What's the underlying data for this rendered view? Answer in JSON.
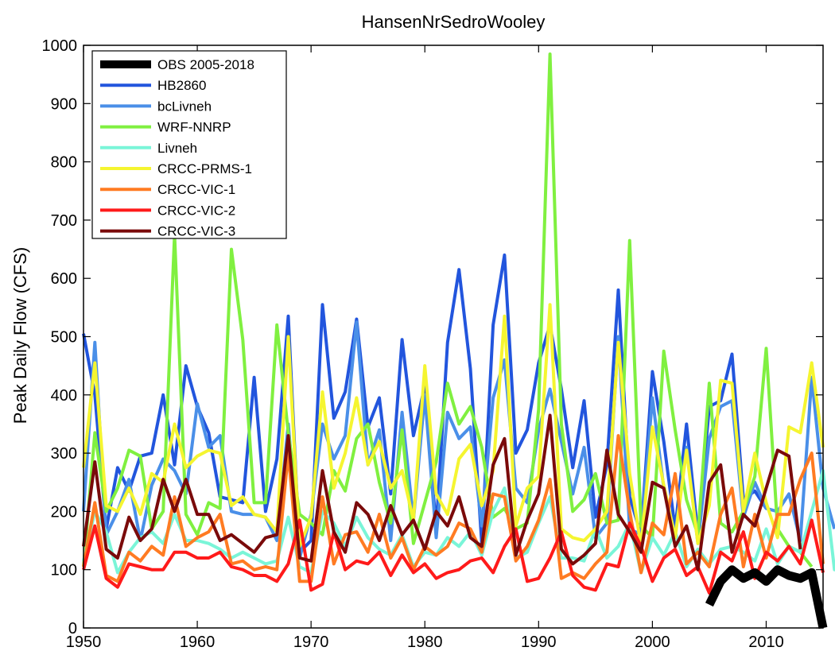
{
  "chart_data": {
    "type": "line",
    "title": "HansenNrSedroWooley",
    "xlabel": "",
    "ylabel": "Peak Daily Flow (CFS)",
    "xlim": [
      1950,
      2015
    ],
    "ylim": [
      0,
      1000
    ],
    "xticks": [
      1950,
      1960,
      1970,
      1980,
      1990,
      2000,
      2010
    ],
    "yticks": [
      0,
      100,
      200,
      300,
      400,
      500,
      600,
      700,
      800,
      900,
      1000
    ],
    "grid": false,
    "legend_position": "top-left",
    "series": [
      {
        "name": "HB2860",
        "color": "#2255dd",
        "width": 4,
        "start": 1950,
        "values": [
          505,
          400,
          170,
          275,
          235,
          295,
          300,
          400,
          280,
          450,
          380,
          335,
          225,
          220,
          215,
          430,
          200,
          290,
          535,
          130,
          150,
          555,
          360,
          405,
          530,
          345,
          395,
          230,
          495,
          330,
          415,
          170,
          490,
          615,
          445,
          145,
          520,
          640,
          300,
          340,
          455,
          520,
          410,
          275,
          390,
          190,
          280,
          580,
          225,
          160,
          440,
          320,
          170,
          350,
          160,
          380,
          390,
          470,
          220,
          235,
          205
        ]
      },
      {
        "name": "bcLivneh",
        "color": "#4a8fe8",
        "width": 4,
        "start": 1950,
        "values": [
          200,
          490,
          160,
          200,
          255,
          150,
          245,
          290,
          270,
          230,
          385,
          310,
          330,
          200,
          195,
          195,
          190,
          150,
          350,
          120,
          195,
          350,
          290,
          330,
          525,
          280,
          340,
          150,
          370,
          185,
          400,
          155,
          370,
          325,
          345,
          175,
          395,
          460,
          240,
          215,
          340,
          410,
          320,
          230,
          310,
          155,
          180,
          500,
          170,
          160,
          395,
          240,
          160,
          310,
          145,
          325,
          380,
          390,
          190,
          250,
          205,
          200,
          230,
          150,
          430,
          240,
          170
        ]
      },
      {
        "name": "WRF-NNRP",
        "color": "#80f040",
        "width": 4,
        "start": 1950,
        "values": [
          105,
          335,
          200,
          240,
          305,
          295,
          170,
          200,
          675,
          195,
          160,
          215,
          205,
          650,
          495,
          215,
          215,
          520,
          335,
          195,
          180,
          160,
          270,
          235,
          325,
          350,
          250,
          180,
          340,
          145,
          215,
          285,
          420,
          350,
          380,
          310,
          190,
          205,
          170,
          180,
          375,
          985,
          350,
          200,
          220,
          265,
          180,
          185,
          665,
          175,
          155,
          475,
          340,
          220,
          160,
          420,
          180,
          165,
          200,
          260,
          480,
          170,
          140,
          130,
          105
        ]
      },
      {
        "name": "Livneh",
        "color": "#7af5d8",
        "width": 4,
        "start": 1950,
        "values": [
          115,
          200,
          165,
          95,
          130,
          155,
          165,
          145,
          195,
          150,
          150,
          145,
          135,
          120,
          130,
          120,
          110,
          115,
          190,
          105,
          95,
          200,
          180,
          140,
          190,
          155,
          135,
          125,
          160,
          105,
          130,
          125,
          155,
          140,
          165,
          125,
          200,
          240,
          120,
          130,
          180,
          225,
          120,
          120,
          115,
          170,
          120,
          140,
          180,
          95,
          155,
          125,
          165,
          105,
          135,
          110,
          135,
          140,
          130,
          115,
          170,
          110,
          140,
          130,
          200,
          270,
          100,
          100,
          80
        ]
      },
      {
        "name": "CRCC-PRMS-1",
        "color": "#f5f530",
        "width": 4,
        "start": 1950,
        "values": [
          275,
          455,
          210,
          200,
          240,
          195,
          265,
          250,
          350,
          275,
          295,
          305,
          300,
          210,
          225,
          195,
          190,
          165,
          500,
          140,
          190,
          405,
          240,
          300,
          395,
          280,
          320,
          240,
          270,
          185,
          450,
          230,
          195,
          290,
          315,
          210,
          270,
          535,
          175,
          240,
          260,
          555,
          170,
          155,
          150,
          170,
          200,
          490,
          265,
          140,
          345,
          245,
          155,
          305,
          145,
          210,
          425,
          420,
          200,
          300,
          215,
          155,
          345,
          335,
          455,
          310
        ]
      },
      {
        "name": "CRCC-VIC-1",
        "color": "#ff7b22",
        "width": 4,
        "start": 1950,
        "values": [
          105,
          215,
          90,
          80,
          130,
          115,
          140,
          125,
          225,
          140,
          155,
          165,
          195,
          110,
          115,
          100,
          105,
          100,
          300,
          80,
          80,
          225,
          110,
          160,
          165,
          130,
          195,
          120,
          155,
          100,
          140,
          125,
          140,
          180,
          170,
          130,
          230,
          225,
          115,
          140,
          185,
          255,
          85,
          95,
          85,
          110,
          130,
          330,
          200,
          95,
          180,
          160,
          265,
          110,
          130,
          105,
          195,
          240,
          105,
          195,
          120,
          195,
          195,
          255,
          300,
          110
        ]
      },
      {
        "name": "CRCC-VIC-2",
        "color": "#ff1a1a",
        "width": 4,
        "start": 1950,
        "values": [
          100,
          175,
          85,
          70,
          110,
          105,
          100,
          100,
          130,
          130,
          120,
          120,
          130,
          105,
          100,
          90,
          90,
          80,
          110,
          185,
          65,
          75,
          165,
          100,
          115,
          110,
          130,
          90,
          125,
          95,
          110,
          85,
          95,
          100,
          115,
          120,
          95,
          140,
          170,
          80,
          85,
          120,
          165,
          90,
          70,
          65,
          110,
          105,
          180,
          140,
          80,
          120,
          135,
          90,
          105,
          60,
          130,
          115,
          165,
          85,
          130,
          115,
          140,
          110,
          185,
          95
        ]
      },
      {
        "name": "CRCC-VIC-3",
        "color": "#7a0a0a",
        "width": 4,
        "start": 1950,
        "values": [
          140,
          285,
          135,
          120,
          190,
          150,
          170,
          255,
          200,
          255,
          195,
          195,
          150,
          160,
          145,
          130,
          155,
          160,
          330,
          120,
          115,
          270,
          165,
          130,
          215,
          195,
          150,
          210,
          160,
          185,
          135,
          200,
          175,
          225,
          155,
          140,
          280,
          325,
          125,
          185,
          230,
          365,
          135,
          110,
          125,
          145,
          305,
          195,
          165,
          130,
          250,
          240,
          140,
          175,
          100,
          250,
          280,
          130,
          195,
          175,
          240,
          305,
          295,
          135
        ]
      },
      {
        "name": "OBS 2005-2018",
        "color": "#000000",
        "width": 11,
        "start": 2005,
        "values": [
          40,
          80,
          100,
          85,
          95,
          80,
          100,
          90,
          85,
          95,
          0
        ]
      }
    ]
  }
}
